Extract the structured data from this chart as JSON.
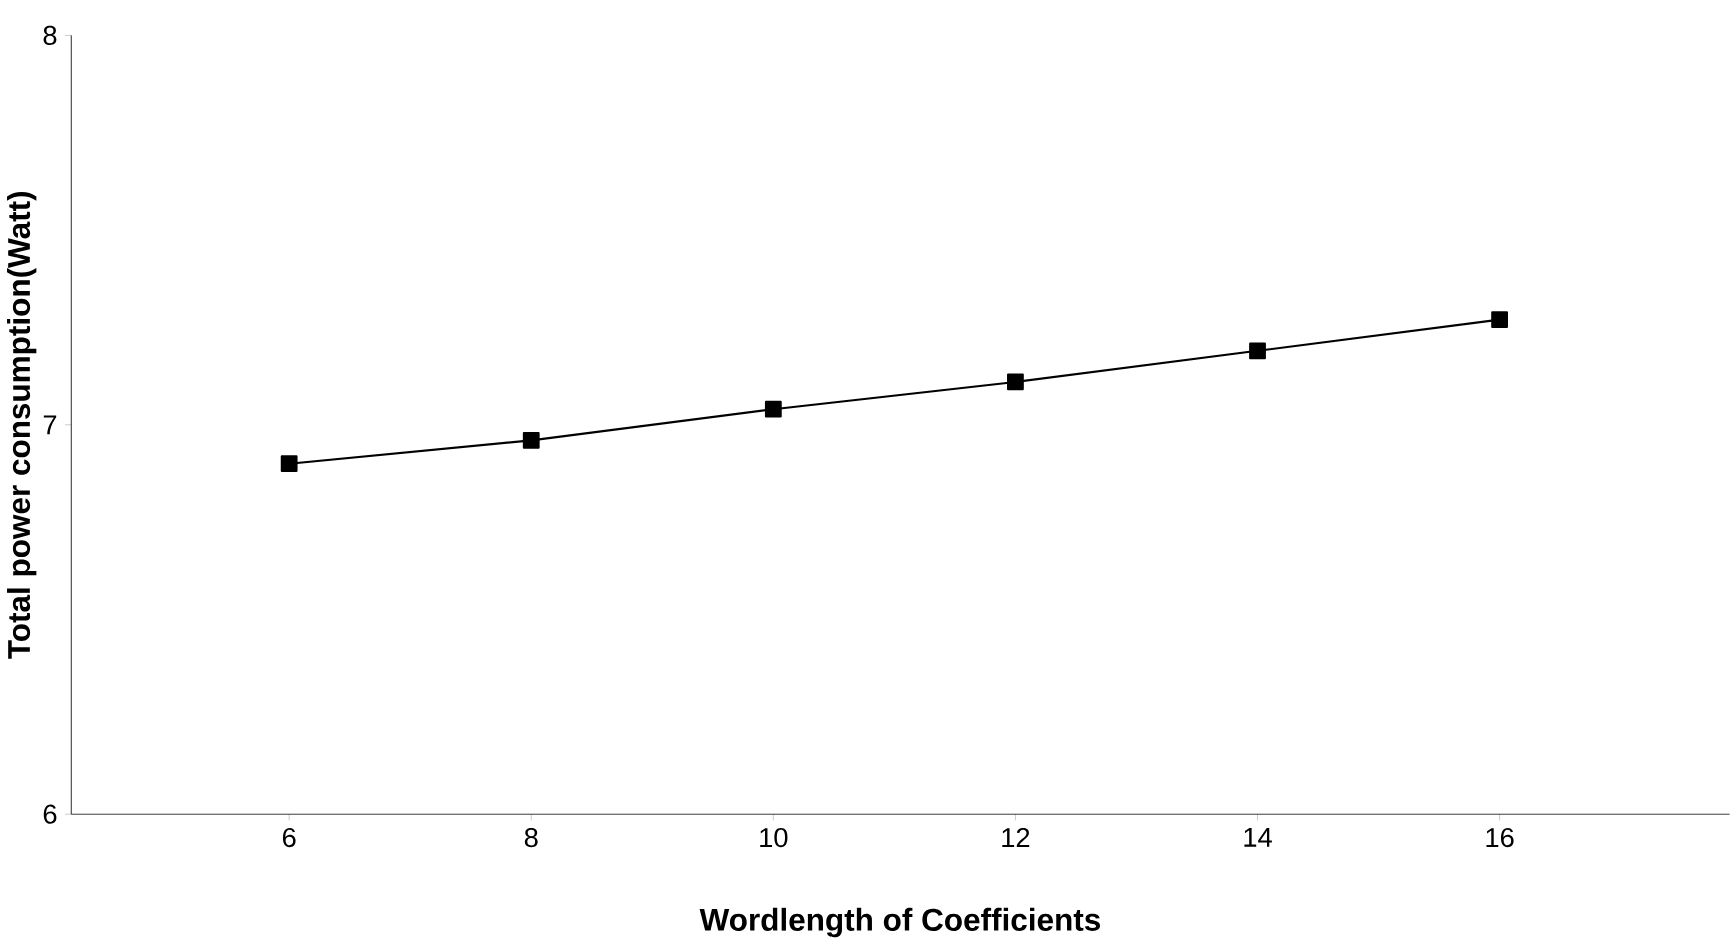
{
  "chart_data": {
    "type": "line",
    "xlabel": "Wordlength of Coefficients",
    "ylabel": "Total power consumption(Watt)",
    "x": [
      6,
      8,
      10,
      12,
      14,
      16
    ],
    "series": [
      {
        "color": "#000000",
        "values": [
          6.9,
          6.96,
          7.04,
          7.11,
          7.19,
          7.27
        ]
      }
    ],
    "xlim": [
      4.2,
      17.9
    ],
    "ylim": [
      6,
      8
    ],
    "xticks": [
      6,
      8,
      10,
      12,
      14,
      16
    ],
    "yticks": [
      6,
      7,
      8
    ],
    "marker": "square",
    "line_style": "solid"
  }
}
